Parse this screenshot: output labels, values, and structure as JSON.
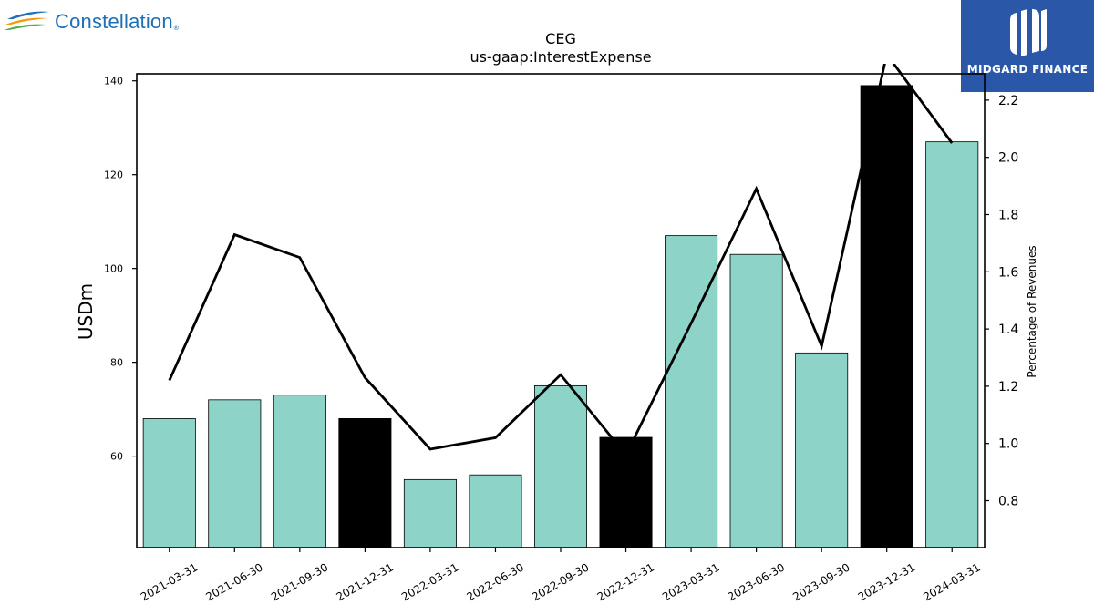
{
  "branding": {
    "left_logo_text": "Constellation",
    "right_logo_text": "MIDGARD FINANCE"
  },
  "colors": {
    "bar_default": "#8dd3c7",
    "bar_highlight": "#000000",
    "line": "#000000"
  },
  "chart_data": {
    "type": "bar",
    "title": "CEG",
    "subtitle": "us-gaap:InterestExpense",
    "ylabel": "USDm",
    "y2label": "Percentage of Revenues",
    "categories": [
      "2021-03-31",
      "2021-06-30",
      "2021-09-30",
      "2021-12-31",
      "2022-03-31",
      "2022-06-30",
      "2022-09-30",
      "2022-12-31",
      "2023-03-31",
      "2023-06-30",
      "2023-09-30",
      "2023-12-31",
      "2024-03-31"
    ],
    "values": [
      68,
      72,
      73,
      68,
      55,
      56,
      75,
      64,
      107,
      103,
      82,
      139,
      127
    ],
    "highlight": [
      false,
      false,
      false,
      true,
      false,
      false,
      false,
      true,
      false,
      false,
      false,
      true,
      false
    ],
    "line_series": {
      "axis": "right",
      "values": [
        1.22,
        1.73,
        1.65,
        1.23,
        0.98,
        1.02,
        1.24,
        0.96,
        1.42,
        1.89,
        1.34,
        2.36,
        2.05
      ]
    },
    "ylim": [
      40.5,
      141.5
    ],
    "y2lim": [
      0.636,
      2.292
    ],
    "yticks": [
      60,
      80,
      100,
      120,
      140
    ],
    "y2ticks": [
      0.8,
      1.0,
      1.2,
      1.4,
      1.6,
      1.8,
      2.0,
      2.2
    ],
    "grid": false,
    "legend": "none"
  }
}
